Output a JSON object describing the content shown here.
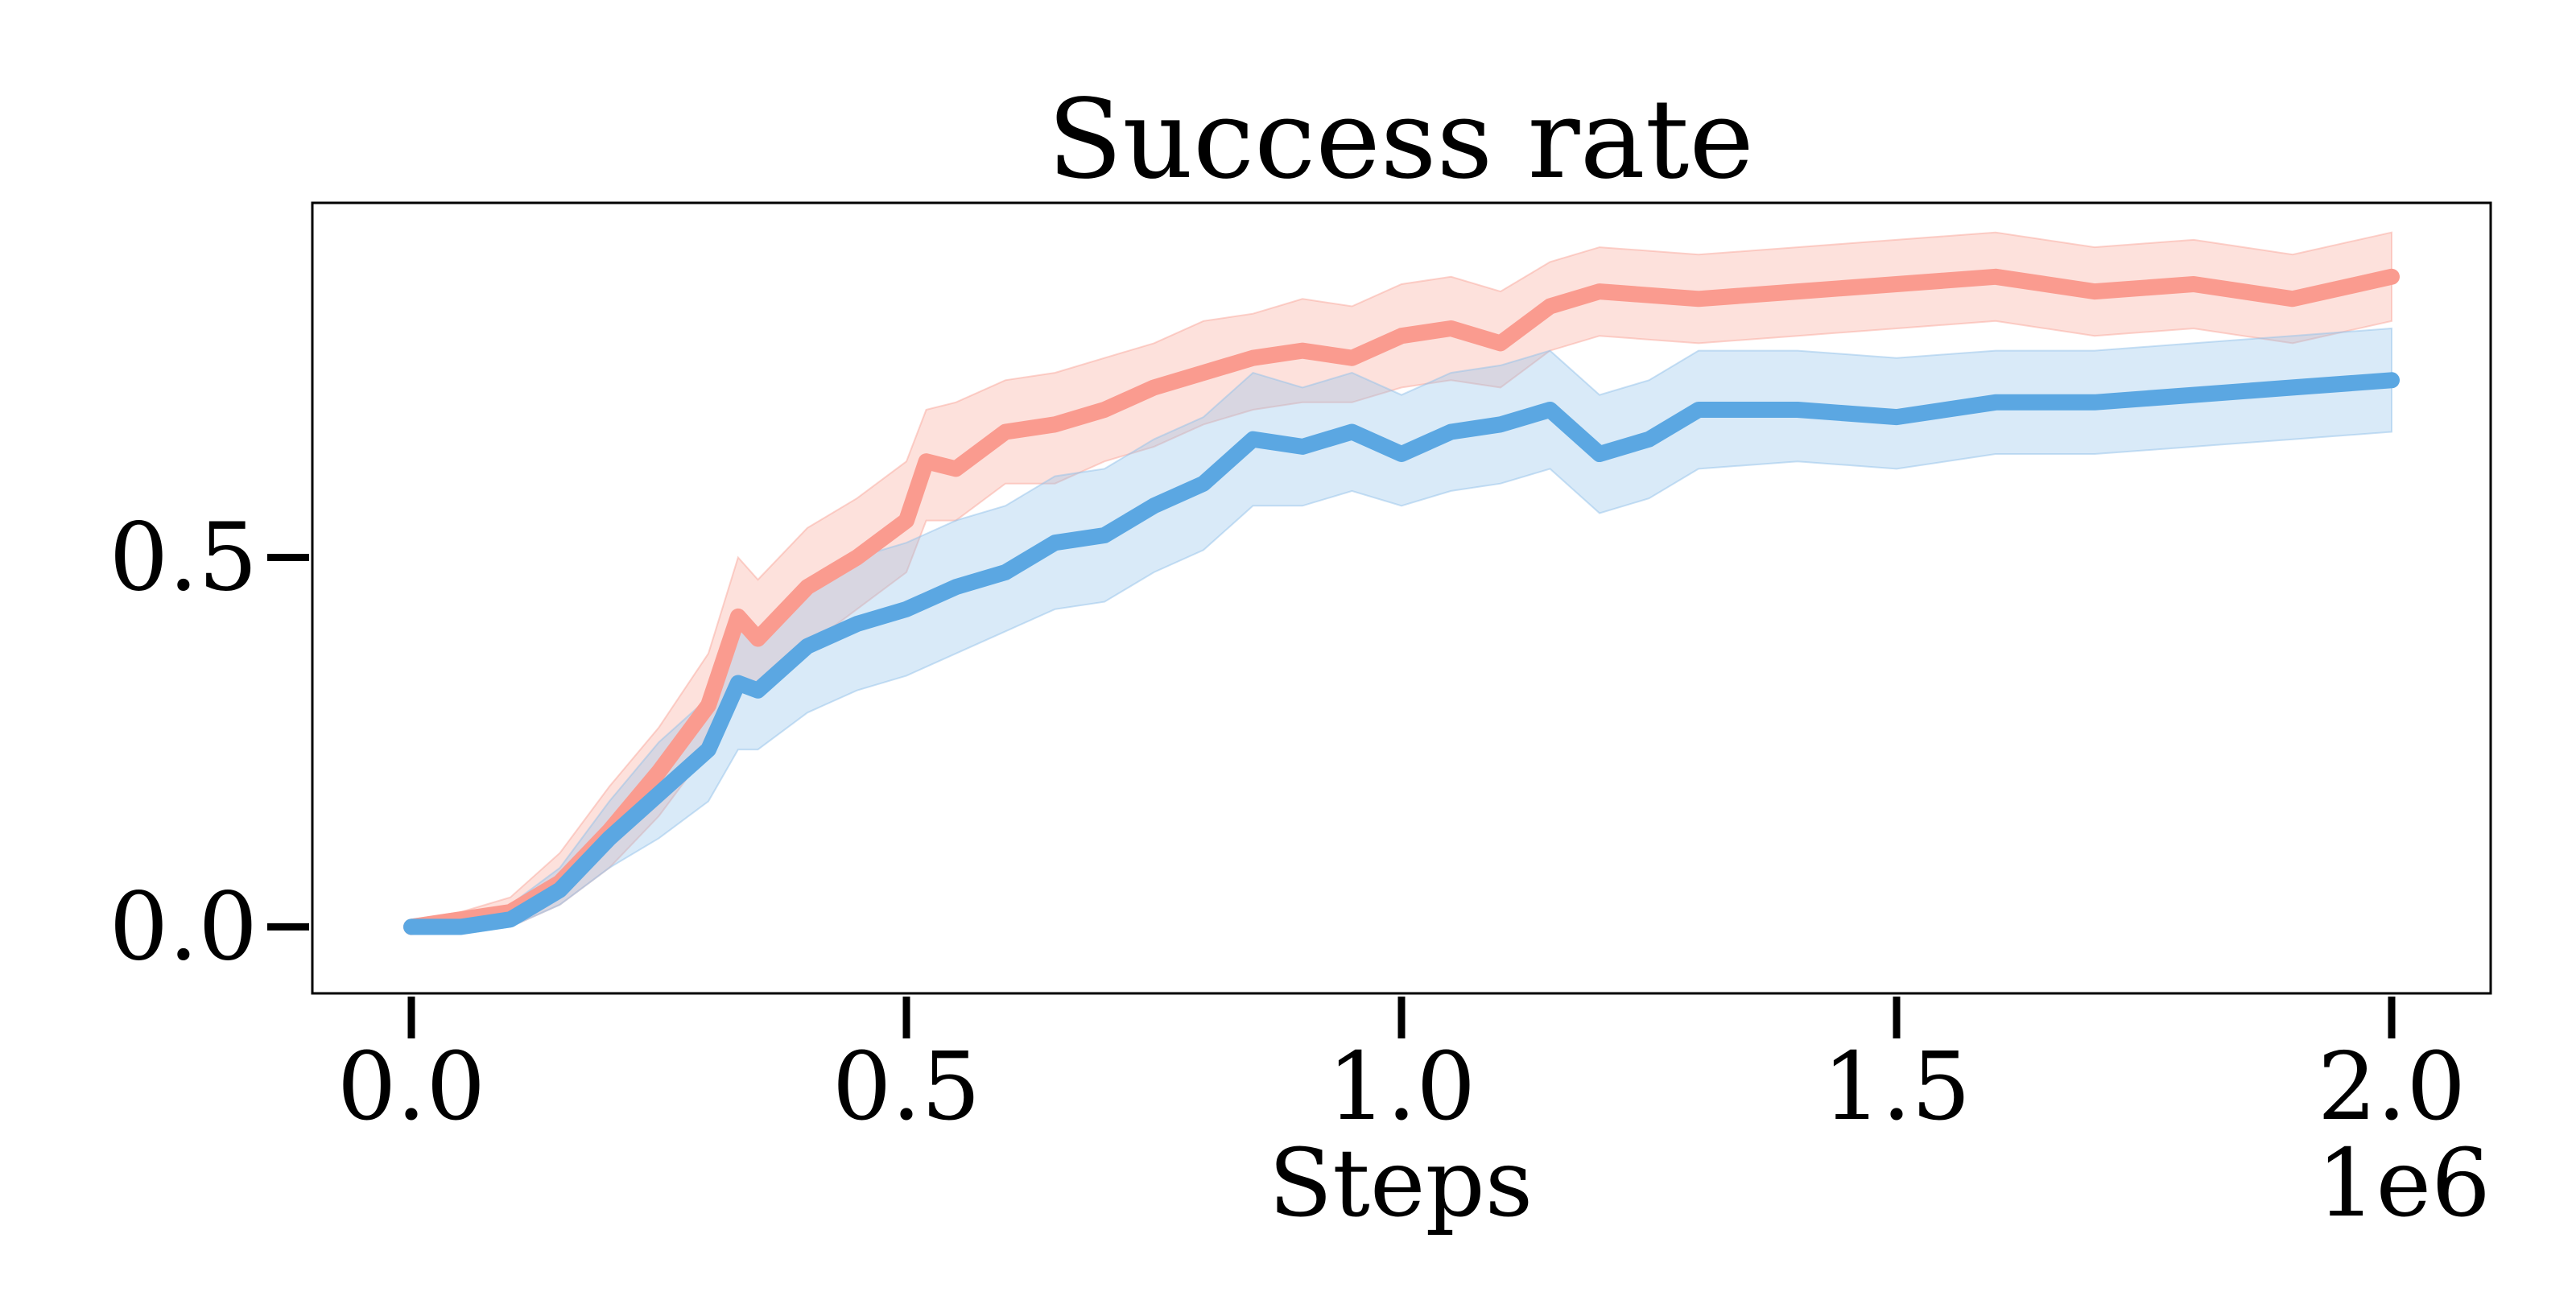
{
  "chart_data": {
    "type": "line",
    "title": "Success rate",
    "xlabel": "Steps",
    "ylabel": "",
    "x_offset_text": "1e6",
    "xlim": [
      -0.1,
      2.1
    ],
    "ylim": [
      -0.09,
      0.98
    ],
    "x_ticks": [
      0.0,
      0.5,
      1.0,
      1.5,
      2.0
    ],
    "x_tick_labels": [
      "0.0",
      "0.5",
      "1.0",
      "1.5",
      "2.0"
    ],
    "y_ticks": [
      0.0,
      0.5
    ],
    "y_tick_labels": [
      "0.0",
      "0.5"
    ],
    "grid": false,
    "legend": "none",
    "colors": {
      "series_red": "#fa9b8f",
      "series_blue": "#5ba7e2",
      "band_red": "#f9a89c",
      "band_blue": "#93c2ea"
    },
    "series": [
      {
        "color_key": "red",
        "x": [
          0.0,
          0.05,
          0.1,
          0.15,
          0.2,
          0.25,
          0.3,
          0.33,
          0.35,
          0.4,
          0.45,
          0.5,
          0.52,
          0.55,
          0.6,
          0.65,
          0.7,
          0.75,
          0.8,
          0.85,
          0.9,
          0.95,
          1.0,
          1.05,
          1.1,
          1.15,
          1.2,
          1.3,
          1.4,
          1.5,
          1.6,
          1.7,
          1.8,
          1.9,
          2.0
        ],
        "y": [
          0.0,
          0.01,
          0.02,
          0.06,
          0.13,
          0.21,
          0.3,
          0.42,
          0.39,
          0.46,
          0.5,
          0.55,
          0.63,
          0.62,
          0.67,
          0.68,
          0.7,
          0.73,
          0.75,
          0.77,
          0.78,
          0.77,
          0.8,
          0.81,
          0.79,
          0.84,
          0.86,
          0.85,
          0.86,
          0.87,
          0.88,
          0.86,
          0.87,
          0.85,
          0.88
        ],
        "lower": [
          -0.01,
          0.0,
          0.0,
          0.03,
          0.08,
          0.15,
          0.24,
          0.33,
          0.32,
          0.38,
          0.43,
          0.48,
          0.55,
          0.55,
          0.6,
          0.6,
          0.63,
          0.65,
          0.68,
          0.7,
          0.71,
          0.71,
          0.73,
          0.74,
          0.73,
          0.78,
          0.8,
          0.79,
          0.8,
          0.81,
          0.82,
          0.8,
          0.81,
          0.79,
          0.82
        ],
        "upper": [
          0.01,
          0.02,
          0.04,
          0.1,
          0.19,
          0.27,
          0.37,
          0.5,
          0.47,
          0.54,
          0.58,
          0.63,
          0.7,
          0.71,
          0.74,
          0.75,
          0.77,
          0.79,
          0.82,
          0.83,
          0.85,
          0.84,
          0.87,
          0.88,
          0.86,
          0.9,
          0.92,
          0.91,
          0.92,
          0.93,
          0.94,
          0.92,
          0.93,
          0.91,
          0.94
        ]
      },
      {
        "color_key": "blue",
        "x": [
          0.0,
          0.05,
          0.1,
          0.15,
          0.2,
          0.25,
          0.3,
          0.33,
          0.35,
          0.4,
          0.45,
          0.5,
          0.55,
          0.6,
          0.65,
          0.7,
          0.75,
          0.8,
          0.85,
          0.9,
          0.95,
          1.0,
          1.05,
          1.1,
          1.15,
          1.2,
          1.25,
          1.3,
          1.4,
          1.5,
          1.6,
          1.7,
          1.8,
          1.9,
          2.0
        ],
        "y": [
          0.0,
          0.0,
          0.01,
          0.05,
          0.12,
          0.18,
          0.24,
          0.33,
          0.32,
          0.38,
          0.41,
          0.43,
          0.46,
          0.48,
          0.52,
          0.53,
          0.57,
          0.6,
          0.66,
          0.65,
          0.67,
          0.64,
          0.67,
          0.68,
          0.7,
          0.64,
          0.66,
          0.7,
          0.7,
          0.69,
          0.71,
          0.71,
          0.72,
          0.73,
          0.74
        ],
        "lower": [
          -0.01,
          -0.01,
          0.0,
          0.03,
          0.08,
          0.12,
          0.17,
          0.24,
          0.24,
          0.29,
          0.32,
          0.34,
          0.37,
          0.4,
          0.43,
          0.44,
          0.48,
          0.51,
          0.57,
          0.57,
          0.59,
          0.57,
          0.59,
          0.6,
          0.62,
          0.56,
          0.58,
          0.62,
          0.63,
          0.62,
          0.64,
          0.64,
          0.65,
          0.66,
          0.67
        ],
        "upper": [
          0.01,
          0.01,
          0.03,
          0.08,
          0.17,
          0.25,
          0.31,
          0.4,
          0.4,
          0.47,
          0.5,
          0.52,
          0.55,
          0.57,
          0.61,
          0.62,
          0.66,
          0.69,
          0.75,
          0.73,
          0.75,
          0.72,
          0.75,
          0.76,
          0.78,
          0.72,
          0.74,
          0.78,
          0.78,
          0.77,
          0.78,
          0.78,
          0.79,
          0.8,
          0.81
        ]
      }
    ]
  }
}
